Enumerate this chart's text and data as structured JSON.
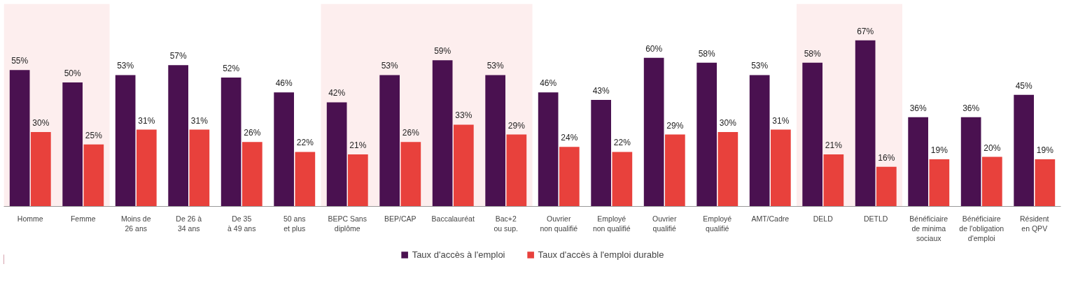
{
  "chart_data": {
    "type": "bar",
    "categories": [
      "Homme",
      "Femme",
      "Moins de\n26 ans",
      "De 26 à\n34 ans",
      "De 35\nà 49 ans",
      "50 ans\net plus",
      "BEPC Sans\ndiplôme",
      "BEP/CAP",
      "Baccalauréat",
      "Bac+2\nou sup.",
      "Ouvrier\nnon qualifié",
      "Employé\nnon qualifié",
      "Ouvrier\nqualifié",
      "Employé\nqualifié",
      "AMT/Cadre",
      "DELD",
      "DETLD",
      "Bénéficiaire\nde minima\nsociaux",
      "Bénéficiaire\nde l'obligation\nd'emploi",
      "Résident\nen QPV"
    ],
    "series": [
      {
        "name": "Taux d'accès à l'emploi",
        "color": "#4a1150",
        "values": [
          55,
          50,
          53,
          57,
          52,
          46,
          42,
          53,
          59,
          53,
          46,
          43,
          60,
          58,
          53,
          58,
          67,
          36,
          36,
          45
        ],
        "value_labels": [
          "55%",
          "50%",
          "53%",
          "57%",
          "52%",
          "46%",
          "42%",
          "53%",
          "59%",
          "53%",
          "46%",
          "43%",
          "60%",
          "58%",
          "53%",
          "58%",
          "67%",
          "36%",
          "36%",
          "45%"
        ]
      },
      {
        "name": "Taux d'accès à l'emploi durable",
        "color": "#e8413c",
        "values": [
          30,
          25,
          31,
          31,
          26,
          22,
          21,
          26,
          33,
          29,
          24,
          22,
          29,
          30,
          31,
          21,
          16,
          19,
          20,
          19
        ],
        "value_labels": [
          "30%",
          "25%",
          "31%",
          "31%",
          "26%",
          "22%",
          "21%",
          "26%",
          "33%",
          "29%",
          "24%",
          "22%",
          "29%",
          "30%",
          "31%",
          "21%",
          "16%",
          "19%",
          "20%",
          "19%"
        ]
      }
    ],
    "bands": [
      {
        "axis": "x",
        "from": "Homme",
        "to": "Femme",
        "label": null,
        "color": "#fdeeee"
      },
      {
        "axis": "x",
        "from": "BEPC Sans\ndiplôme",
        "to": "Bac+2\nou sup.",
        "label": null,
        "color": "#fdeeee"
      },
      {
        "axis": "x",
        "from": "DELD",
        "to": "DETLD",
        "label": null,
        "color": "#fdeeee"
      }
    ],
    "grid": false,
    "legend": "bottom"
  }
}
